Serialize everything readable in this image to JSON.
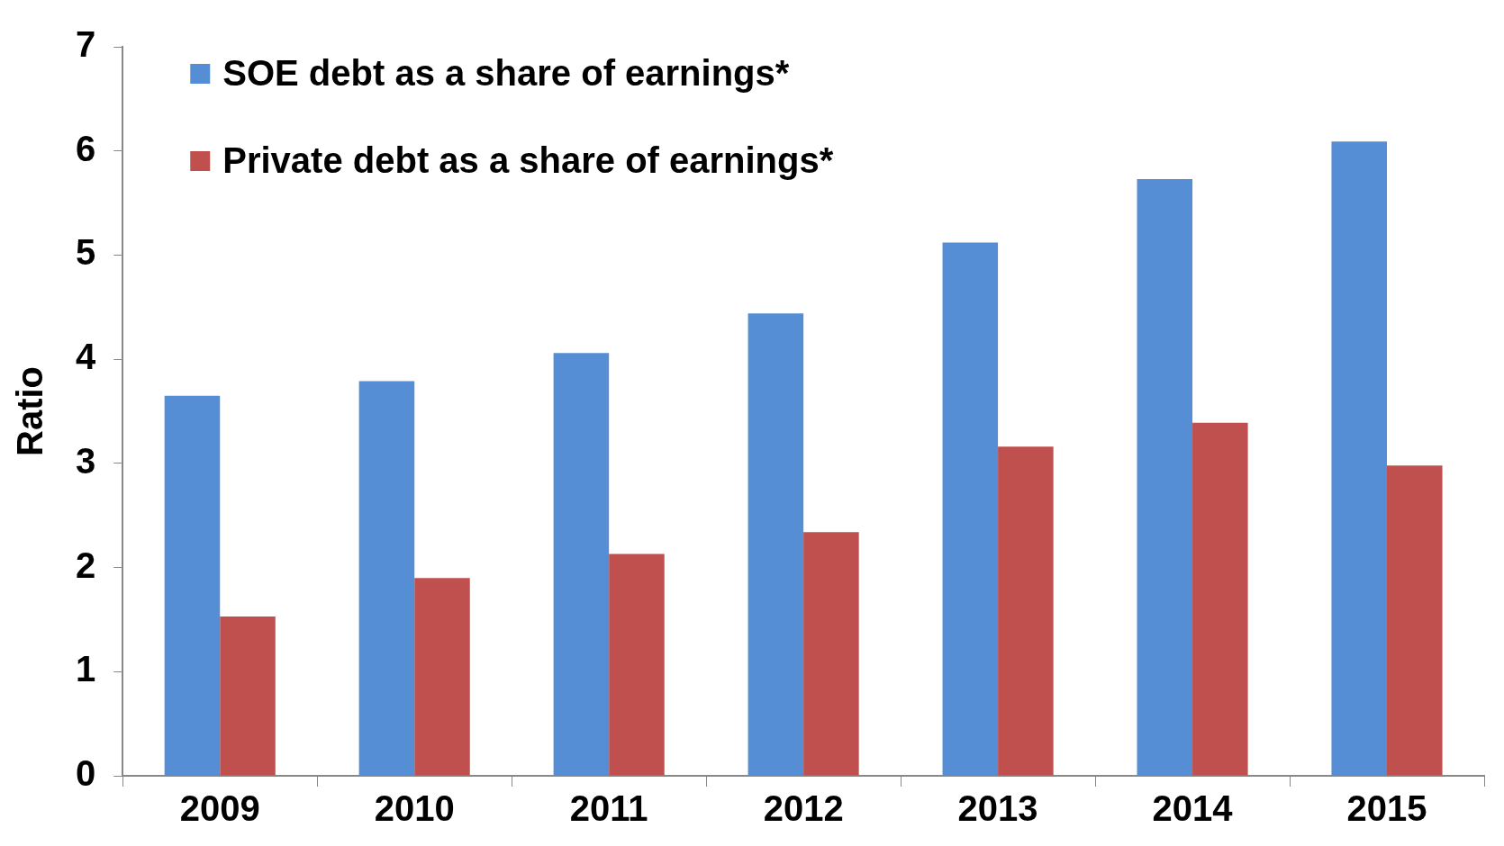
{
  "chart_data": {
    "type": "bar",
    "ylabel": "Ratio",
    "categories": [
      "2009",
      "2010",
      "2011",
      "2012",
      "2013",
      "2014",
      "2015"
    ],
    "series": [
      {
        "name": "SOE debt as a share of earnings*",
        "color": "#558ed5",
        "values": [
          3.65,
          3.79,
          4.06,
          4.44,
          5.12,
          5.73,
          6.09
        ]
      },
      {
        "name": "Private debt as a share of earnings*",
        "color": "#c0504d",
        "values": [
          1.53,
          1.9,
          2.13,
          2.34,
          3.16,
          3.39,
          2.98
        ]
      }
    ],
    "ylim": [
      0,
      7
    ],
    "yticks": [
      0,
      1,
      2,
      3,
      4,
      5,
      6,
      7
    ],
    "grid": false,
    "legend": "top left"
  }
}
